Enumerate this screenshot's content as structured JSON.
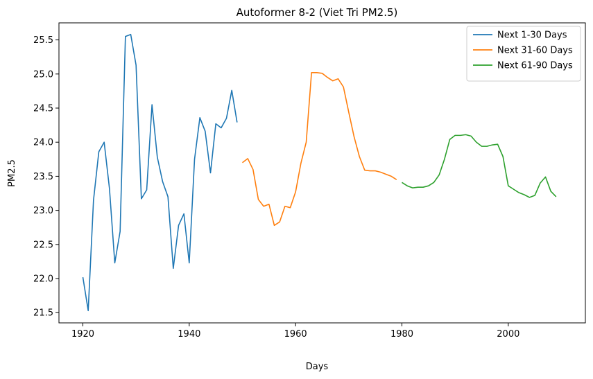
{
  "chart_data": {
    "type": "line",
    "title": "Autoformer 8-2 (Viet Tri PM2.5)",
    "xlabel": "Days",
    "ylabel": "PM2.5",
    "xlim": [
      1915.5,
      2014.5
    ],
    "ylim": [
      21.35,
      25.75
    ],
    "xticks": [
      1920,
      1940,
      1960,
      1980,
      2000
    ],
    "yticks": [
      21.5,
      22.0,
      22.5,
      23.0,
      23.5,
      24.0,
      24.5,
      25.0,
      25.5
    ],
    "ytick_labels": [
      "21.5",
      "22.0",
      "22.5",
      "23.0",
      "23.5",
      "24.0",
      "24.5",
      "25.0",
      "25.5"
    ],
    "grid": false,
    "legend_position": "top-right",
    "series": [
      {
        "name": "Next 1-30 Days",
        "color": "#1f77b4",
        "x": [
          1920,
          1921,
          1922,
          1923,
          1924,
          1925,
          1926,
          1927,
          1928,
          1929,
          1930,
          1931,
          1932,
          1933,
          1934,
          1935,
          1936,
          1937,
          1938,
          1939,
          1940,
          1941,
          1942,
          1943,
          1944,
          1945,
          1946,
          1947,
          1948,
          1949
        ],
        "y": [
          22.02,
          21.53,
          23.15,
          23.86,
          24.0,
          23.32,
          22.23,
          22.69,
          25.55,
          25.58,
          25.13,
          23.17,
          23.3,
          24.55,
          23.78,
          23.42,
          23.2,
          22.15,
          22.78,
          22.95,
          22.23,
          23.75,
          24.36,
          24.16,
          23.55,
          24.27,
          24.21,
          24.35,
          24.76,
          24.29
        ]
      },
      {
        "name": "Next 31-60 Days",
        "color": "#ff7f0e",
        "x": [
          1950,
          1951,
          1952,
          1953,
          1954,
          1955,
          1956,
          1957,
          1958,
          1959,
          1960,
          1961,
          1962,
          1963,
          1964,
          1965,
          1966,
          1967,
          1968,
          1969,
          1970,
          1971,
          1972,
          1973,
          1974,
          1975,
          1976,
          1977,
          1978,
          1979
        ],
        "y": [
          23.7,
          23.76,
          23.6,
          23.16,
          23.06,
          23.09,
          22.78,
          22.83,
          23.06,
          23.04,
          23.27,
          23.69,
          24.0,
          25.02,
          25.02,
          25.01,
          24.95,
          24.9,
          24.93,
          24.81,
          24.44,
          24.08,
          23.79,
          23.59,
          23.58,
          23.58,
          23.56,
          23.53,
          23.5,
          23.45
        ]
      },
      {
        "name": "Next 61-90 Days",
        "color": "#2ca02c",
        "x": [
          1980,
          1981,
          1982,
          1983,
          1984,
          1985,
          1986,
          1987,
          1988,
          1989,
          1990,
          1991,
          1992,
          1993,
          1994,
          1995,
          1996,
          1997,
          1998,
          1999,
          2000,
          2001,
          2002,
          2003,
          2004,
          2005,
          2006,
          2007,
          2008,
          2009
        ],
        "y": [
          23.41,
          23.36,
          23.33,
          23.34,
          23.34,
          23.36,
          23.41,
          23.52,
          23.75,
          24.04,
          24.1,
          24.1,
          24.11,
          24.09,
          24.0,
          23.94,
          23.94,
          23.96,
          23.97,
          23.79,
          23.36,
          23.31,
          23.26,
          23.23,
          23.19,
          23.22,
          23.4,
          23.49,
          23.28,
          23.2
        ]
      }
    ]
  }
}
